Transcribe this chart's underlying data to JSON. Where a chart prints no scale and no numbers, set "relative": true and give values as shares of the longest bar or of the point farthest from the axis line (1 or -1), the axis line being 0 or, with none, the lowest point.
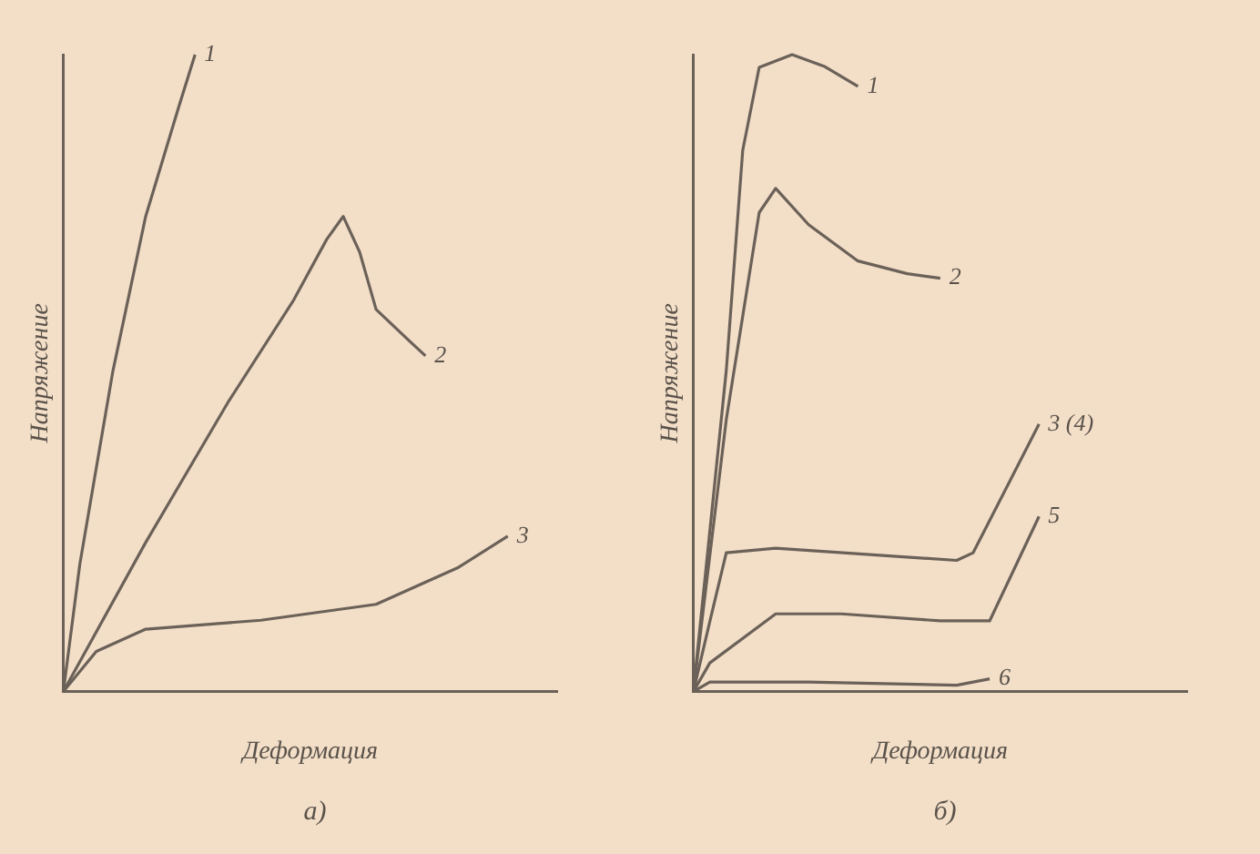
{
  "chart_data": [
    {
      "type": "line",
      "relative": true,
      "xlabel": "Деформация",
      "ylabel": "Напряжение",
      "annotations": [
        "а)"
      ],
      "grid": false,
      "legend": false,
      "marker": "none",
      "categories": [
        null,
        null,
        null,
        null,
        null,
        null,
        null,
        null,
        null,
        null,
        null,
        null,
        null,
        null,
        null,
        null,
        null,
        null,
        null,
        null,
        null,
        null,
        null,
        null,
        null,
        null,
        null,
        null,
        null,
        null,
        null
      ],
      "series": [
        {
          "name": "1",
          "color": "#6b6158",
          "values": [
            0,
            0.2,
            null,
            0.502,
            null,
            0.746,
            null,
            0.917,
            1,
            null,
            null,
            null,
            null,
            null,
            null,
            null,
            null,
            null,
            null,
            null,
            null,
            null,
            null,
            null,
            null,
            null,
            null,
            null,
            null,
            null,
            null
          ]
        },
        {
          "name": "2",
          "color": "#6b6158",
          "values": [
            0,
            null,
            null,
            null,
            null,
            0.234,
            null,
            null,
            null,
            null,
            0.454,
            null,
            null,
            null,
            0.615,
            null,
            0.71,
            0.746,
            0.69,
            0.6,
            null,
            0.551,
            0.527,
            null,
            null,
            null,
            null,
            null,
            null,
            null,
            null
          ]
        },
        {
          "name": "3",
          "color": "#6b6158",
          "values": [
            0,
            null,
            0.063,
            null,
            null,
            0.098,
            null,
            null,
            null,
            null,
            null,
            null,
            0.112,
            null,
            null,
            null,
            null,
            null,
            null,
            0.137,
            null,
            null,
            null,
            null,
            0.195,
            null,
            null,
            0.244,
            null,
            null,
            null
          ]
        }
      ]
    },
    {
      "type": "line",
      "relative": true,
      "xlabel": "Деформация",
      "ylabel": "Напряжение",
      "annotations": [
        "б)"
      ],
      "grid": false,
      "legend": false,
      "marker": "none",
      "categories": [
        null,
        null,
        null,
        null,
        null,
        null,
        null,
        null,
        null,
        null,
        null,
        null,
        null,
        null,
        null,
        null,
        null,
        null,
        null,
        null,
        null,
        null,
        null,
        null,
        null,
        null,
        null,
        null,
        null,
        null,
        null
      ],
      "series": [
        {
          "name": "1",
          "color": "#6b6158",
          "values": [
            0,
            null,
            0.504,
            0.85,
            0.98,
            null,
            1,
            null,
            0.981,
            null,
            0.95,
            null,
            null,
            null,
            null,
            null,
            null,
            null,
            null,
            null,
            null,
            null,
            null,
            null,
            null,
            null,
            null,
            null,
            null,
            null,
            null
          ]
        },
        {
          "name": "2",
          "color": "#6b6158",
          "values": [
            0,
            null,
            0.427,
            null,
            0.752,
            0.79,
            null,
            0.733,
            null,
            null,
            0.676,
            null,
            null,
            0.656,
            null,
            0.649,
            null,
            null,
            null,
            null,
            null,
            null,
            null,
            null,
            null,
            null,
            null,
            null,
            null,
            null,
            null
          ]
        },
        {
          "name": "3 (4)",
          "color": "#6b6158",
          "values": [
            0,
            0.11,
            0.218,
            null,
            null,
            0.225,
            null,
            null,
            null,
            null,
            null,
            null,
            null,
            null,
            null,
            null,
            0.206,
            0.218,
            null,
            null,
            null,
            0.42,
            null,
            null,
            null,
            null,
            null,
            null,
            null,
            null,
            null
          ]
        },
        {
          "name": "5",
          "color": "#6b6158",
          "values": [
            0,
            0.045,
            null,
            null,
            null,
            0.122,
            null,
            null,
            null,
            0.122,
            null,
            null,
            null,
            null,
            null,
            0.111,
            null,
            null,
            0.111,
            null,
            null,
            0.275,
            null,
            null,
            null,
            null,
            null,
            null,
            null,
            null,
            null
          ]
        },
        {
          "name": "6",
          "color": "#6b6158",
          "values": [
            0,
            0.015,
            null,
            null,
            null,
            null,
            null,
            0.015,
            null,
            null,
            null,
            null,
            null,
            null,
            null,
            null,
            0.01,
            null,
            0.02,
            null,
            null,
            null,
            null,
            null,
            null,
            null,
            null,
            null,
            null,
            null,
            null
          ]
        }
      ]
    }
  ]
}
